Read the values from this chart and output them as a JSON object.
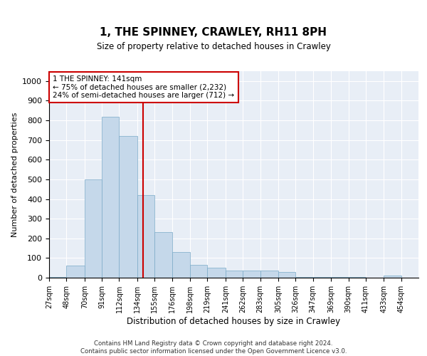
{
  "title": "1, THE SPINNEY, CRAWLEY, RH11 8PH",
  "subtitle": "Size of property relative to detached houses in Crawley",
  "xlabel": "Distribution of detached houses by size in Crawley",
  "ylabel": "Number of detached properties",
  "property_size": 141,
  "bar_color": "#c5d8ea",
  "bar_edge_color": "#7aaac8",
  "vline_color": "#cc0000",
  "vline_x": 141,
  "annotation_text": "1 THE SPINNEY: 141sqm\n← 75% of detached houses are smaller (2,232)\n24% of semi-detached houses are larger (712) →",
  "annotation_box_color": "#ffffff",
  "annotation_box_edge": "#cc0000",
  "background_color": "#e8eef6",
  "ylim": [
    0,
    1050
  ],
  "yticks": [
    0,
    100,
    200,
    300,
    400,
    500,
    600,
    700,
    800,
    900,
    1000
  ],
  "footer_line1": "Contains HM Land Registry data © Crown copyright and database right 2024.",
  "footer_line2": "Contains public sector information licensed under the Open Government Licence v3.0.",
  "bin_labels": [
    "27sqm",
    "48sqm",
    "70sqm",
    "91sqm",
    "112sqm",
    "134sqm",
    "155sqm",
    "176sqm",
    "198sqm",
    "219sqm",
    "241sqm",
    "262sqm",
    "283sqm",
    "305sqm",
    "326sqm",
    "347sqm",
    "369sqm",
    "390sqm",
    "411sqm",
    "433sqm",
    "454sqm"
  ],
  "bin_edges": [
    27,
    48,
    70,
    91,
    112,
    134,
    155,
    176,
    198,
    219,
    241,
    262,
    283,
    305,
    326,
    347,
    369,
    390,
    411,
    433,
    454,
    475
  ],
  "bar_heights": [
    5,
    60,
    500,
    820,
    720,
    420,
    230,
    130,
    65,
    50,
    35,
    35,
    35,
    30,
    5,
    5,
    5,
    5,
    0,
    10,
    0
  ]
}
